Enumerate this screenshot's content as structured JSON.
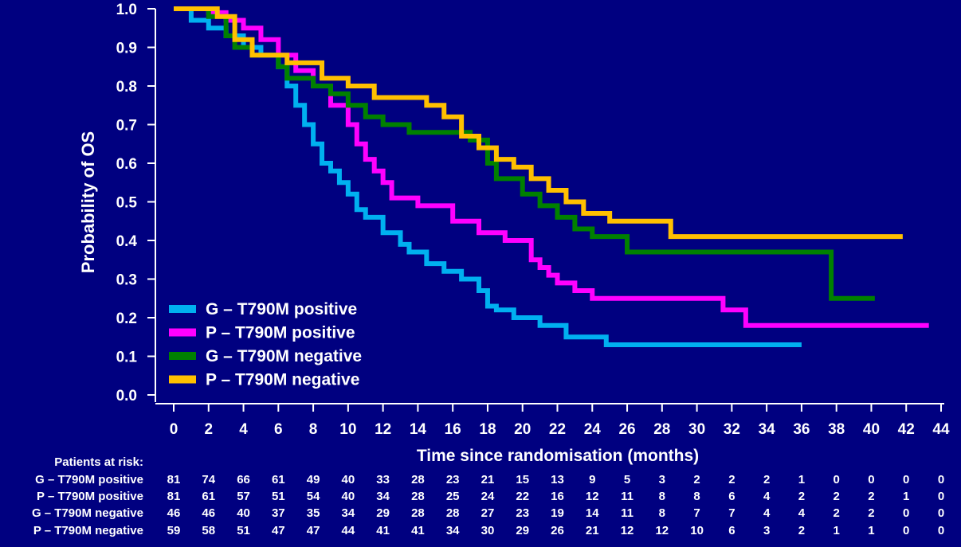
{
  "chart_data": {
    "type": "line",
    "ylabel": "Probability of OS",
    "xlabel": "Time since randomisation (months)",
    "xlim": [
      0,
      44
    ],
    "ylim": [
      0,
      1
    ],
    "x_ticks": [
      "0",
      "2",
      "4",
      "6",
      "8",
      "10",
      "12",
      "14",
      "16",
      "18",
      "20",
      "22",
      "24",
      "26",
      "28",
      "30",
      "32",
      "34",
      "36",
      "38",
      "40",
      "42",
      "44"
    ],
    "y_ticks": [
      "0.0",
      "0.1",
      "0.2",
      "0.3",
      "0.4",
      "0.5",
      "0.6",
      "0.7",
      "0.8",
      "0.9",
      "1.0"
    ],
    "legend_position": "bottom-left",
    "series": [
      {
        "name": "G – T790M positive",
        "color": "#00b0f0",
        "x": [
          0,
          1,
          2,
          3,
          4,
          5,
          6,
          6.5,
          7,
          7.5,
          8,
          8.5,
          9,
          9.5,
          10,
          10.5,
          11,
          12,
          13,
          13.5,
          14.5,
          15.5,
          16.5,
          17.5,
          18,
          18.5,
          19.5,
          21,
          22.5,
          24.8,
          36
        ],
        "y": [
          1.0,
          0.97,
          0.95,
          0.93,
          0.9,
          0.88,
          0.85,
          0.8,
          0.75,
          0.7,
          0.65,
          0.6,
          0.58,
          0.55,
          0.52,
          0.48,
          0.46,
          0.42,
          0.39,
          0.37,
          0.34,
          0.32,
          0.3,
          0.27,
          0.23,
          0.22,
          0.2,
          0.18,
          0.15,
          0.13,
          0.13
        ]
      },
      {
        "name": "P – T790M positive",
        "color": "#ff00ff",
        "x": [
          0,
          2,
          3,
          4,
          5,
          6,
          7,
          8,
          9,
          10,
          10.5,
          11,
          11.5,
          12,
          12.5,
          14,
          16,
          17.5,
          19,
          20.5,
          21,
          21.5,
          22,
          23,
          24,
          31.5,
          32.8,
          43.3
        ],
        "y": [
          1.0,
          0.99,
          0.97,
          0.95,
          0.92,
          0.88,
          0.84,
          0.8,
          0.75,
          0.7,
          0.65,
          0.61,
          0.58,
          0.55,
          0.51,
          0.49,
          0.45,
          0.42,
          0.4,
          0.35,
          0.33,
          0.31,
          0.29,
          0.27,
          0.25,
          0.22,
          0.18,
          0.18
        ]
      },
      {
        "name": "G – T790M negative",
        "color": "#008000",
        "x": [
          0,
          2,
          3,
          3.5,
          4.5,
          6,
          6.5,
          8,
          9,
          10,
          11,
          12,
          13.5,
          15.5,
          17,
          18,
          18.5,
          20,
          21,
          22,
          23,
          24,
          26,
          37.7,
          40.2
        ],
        "y": [
          1.0,
          0.98,
          0.93,
          0.9,
          0.88,
          0.85,
          0.82,
          0.8,
          0.78,
          0.75,
          0.72,
          0.7,
          0.68,
          0.68,
          0.66,
          0.6,
          0.56,
          0.52,
          0.49,
          0.46,
          0.43,
          0.41,
          0.37,
          0.25,
          0.25
        ]
      },
      {
        "name": "P – T790M negative",
        "color": "#ffc000",
        "x": [
          0,
          2.5,
          3.5,
          4.5,
          6.5,
          8.5,
          10,
          11.5,
          14.5,
          15.5,
          16.5,
          17.5,
          18.5,
          19.5,
          20.5,
          21.5,
          22.5,
          23.5,
          25,
          28.5,
          41.8
        ],
        "y": [
          1.0,
          0.98,
          0.92,
          0.88,
          0.86,
          0.82,
          0.8,
          0.77,
          0.75,
          0.72,
          0.67,
          0.64,
          0.61,
          0.59,
          0.56,
          0.53,
          0.5,
          0.47,
          0.45,
          0.41,
          0.41
        ]
      }
    ],
    "risk_table": {
      "title": "Patients at risk:",
      "columns_x": [
        0,
        2,
        4,
        6,
        8,
        10,
        12,
        14,
        16,
        18,
        20,
        22,
        24,
        26,
        28,
        30,
        32,
        34,
        36,
        38,
        40,
        42,
        44
      ],
      "rows": [
        {
          "label": "G – T790M positive",
          "values": [
            "81",
            "74",
            "66",
            "61",
            "49",
            "40",
            "33",
            "28",
            "23",
            "21",
            "15",
            "13",
            "9",
            "5",
            "3",
            "2",
            "2",
            "2",
            "1",
            "0",
            "0",
            "0",
            "0"
          ]
        },
        {
          "label": "P – T790M positive",
          "values": [
            "81",
            "61",
            "57",
            "51",
            "54",
            "40",
            "34",
            "28",
            "25",
            "24",
            "22",
            "16",
            "12",
            "11",
            "8",
            "8",
            "6",
            "4",
            "2",
            "2",
            "2",
            "1",
            "0"
          ]
        },
        {
          "label": "G – T790M negative",
          "values": [
            "46",
            "46",
            "40",
            "37",
            "35",
            "34",
            "29",
            "28",
            "28",
            "27",
            "23",
            "19",
            "14",
            "11",
            "8",
            "7",
            "7",
            "4",
            "4",
            "2",
            "2",
            "0",
            "0"
          ]
        },
        {
          "label": "P – T790M negative",
          "values": [
            "59",
            "58",
            "51",
            "47",
            "47",
            "44",
            "41",
            "41",
            "34",
            "30",
            "29",
            "26",
            "21",
            "12",
            "12",
            "10",
            "6",
            "3",
            "2",
            "1",
            "1",
            "0",
            "0"
          ]
        }
      ]
    }
  }
}
